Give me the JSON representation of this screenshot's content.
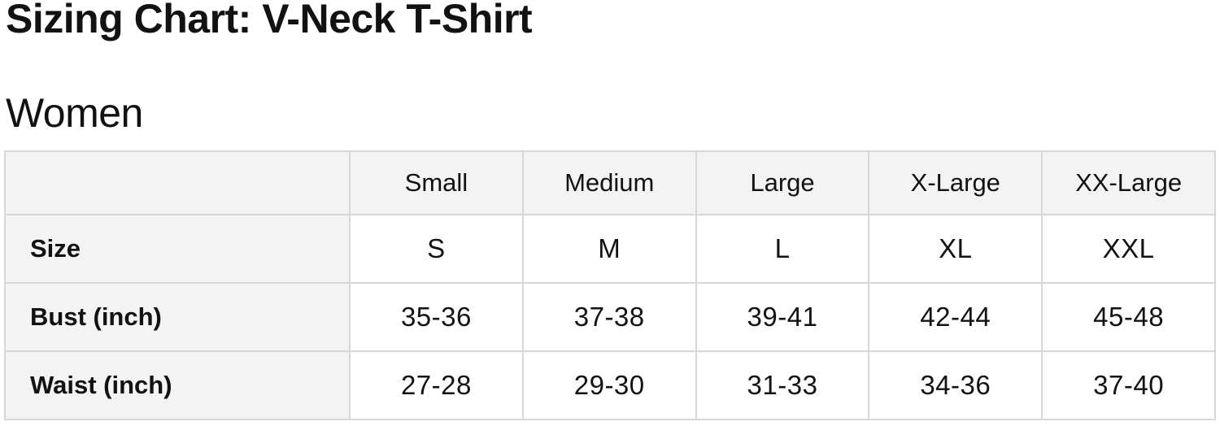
{
  "page": {
    "title": "Sizing Chart: V-Neck T-Shirt",
    "section": "Women"
  },
  "table": {
    "corner_label": "",
    "column_headers": [
      "Small",
      "Medium",
      "Large",
      "X-Large",
      "XX-Large"
    ],
    "rows": [
      {
        "label": "Size",
        "values": [
          "S",
          "M",
          "L",
          "XL",
          "XXL"
        ]
      },
      {
        "label": "Bust (inch)",
        "values": [
          "35-36",
          "37-38",
          "39-41",
          "42-44",
          "45-48"
        ]
      },
      {
        "label": "Waist (inch)",
        "values": [
          "27-28",
          "29-30",
          "31-33",
          "34-36",
          "37-40"
        ]
      }
    ]
  },
  "colors": {
    "page_bg": "#ffffff",
    "header_bg": "#f3f3f3",
    "label_column_bg": "#f3f3f3",
    "data_cell_bg": "#ffffff",
    "border": "#d7d7d7",
    "text": "#101214"
  },
  "chart_data": {
    "type": "table",
    "title": "Sizing Chart: V-Neck T-Shirt",
    "section": "Women",
    "columns": [
      "",
      "Small",
      "Medium",
      "Large",
      "X-Large",
      "XX-Large"
    ],
    "rows": [
      [
        "Size",
        "S",
        "M",
        "L",
        "XL",
        "XXL"
      ],
      [
        "Bust (inch)",
        "35-36",
        "37-38",
        "39-41",
        "42-44",
        "45-48"
      ],
      [
        "Waist (inch)",
        "27-28",
        "29-30",
        "31-33",
        "34-36",
        "37-40"
      ]
    ]
  }
}
